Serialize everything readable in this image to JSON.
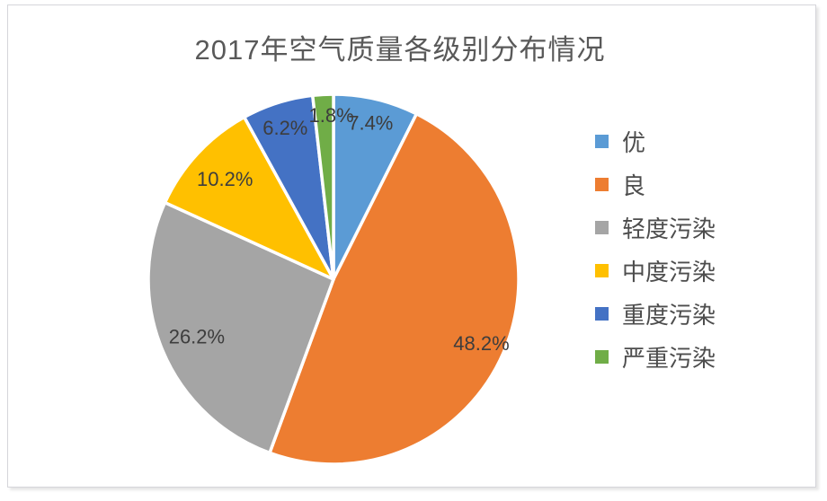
{
  "chart_data": {
    "type": "pie",
    "title": "2017年空气质量各级别分布情况",
    "legend_position": "right",
    "label_format": "percent",
    "background": "#ffffff",
    "slices": [
      {
        "name": "优",
        "value": 7.4,
        "label": "7.4%",
        "color": "#5B9BD5"
      },
      {
        "name": "良",
        "value": 48.2,
        "label": "48.2%",
        "color": "#ED7D31"
      },
      {
        "name": "轻度污染",
        "value": 26.2,
        "label": "26.2%",
        "color": "#A5A5A5"
      },
      {
        "name": "中度污染",
        "value": 10.2,
        "label": "10.2%",
        "color": "#FFC000"
      },
      {
        "name": "重度污染",
        "value": 6.2,
        "label": "6.2%",
        "color": "#4472C4"
      },
      {
        "name": "严重污染",
        "value": 1.8,
        "label": "1.8%",
        "color": "#70AD47"
      }
    ]
  }
}
